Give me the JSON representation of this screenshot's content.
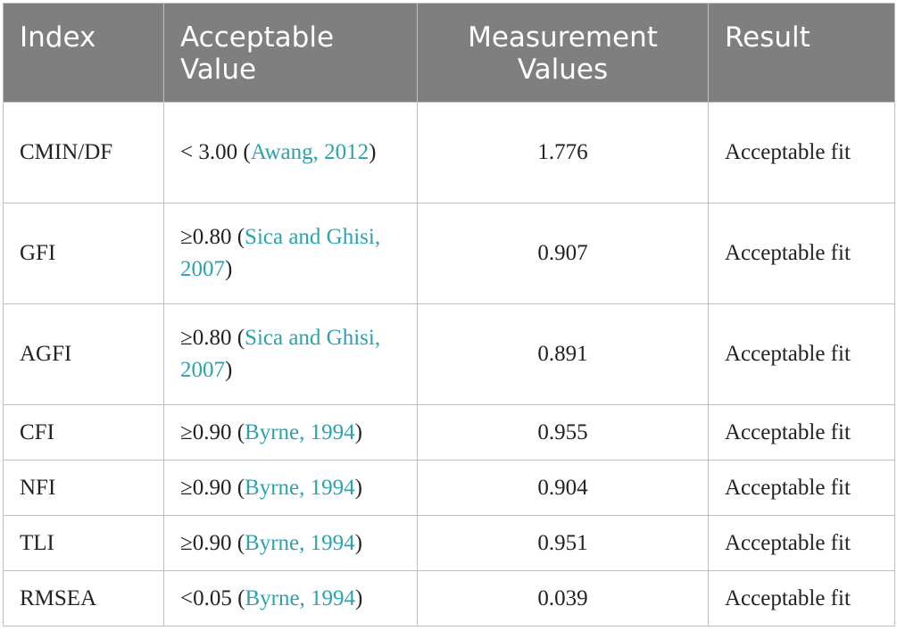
{
  "table": {
    "headers": [
      {
        "line1": "Index",
        "line2": ""
      },
      {
        "line1": "Acceptable",
        "line2": "Value"
      },
      {
        "line1": "Measurement",
        "line2": "Values"
      },
      {
        "line1": "Result",
        "line2": ""
      }
    ],
    "rows": [
      {
        "index": "CMIN/DF",
        "crit_prefix": "< 3.00 (",
        "citation": "Awang, 2012",
        "crit_suffix": ")",
        "value": "1.776",
        "result": "Acceptable fit"
      },
      {
        "index": "GFI",
        "crit_prefix": "≥0.80 (",
        "citation": "Sica and Ghisi, 2007",
        "crit_suffix": ")",
        "value": "0.907",
        "result": "Acceptable fit"
      },
      {
        "index": "AGFI",
        "crit_prefix": "≥0.80 (",
        "citation": "Sica and Ghisi, 2007",
        "crit_suffix": ")",
        "value": "0.891",
        "result": "Acceptable fit"
      },
      {
        "index": "CFI",
        "crit_prefix": "≥0.90 (",
        "citation": "Byrne, 1994",
        "crit_suffix": ")",
        "value": "0.955",
        "result": "Acceptable fit"
      },
      {
        "index": "NFI",
        "crit_prefix": "≥0.90 (",
        "citation": "Byrne, 1994",
        "crit_suffix": ")",
        "value": "0.904",
        "result": "Acceptable fit"
      },
      {
        "index": "TLI",
        "crit_prefix": "≥0.90 (",
        "citation": "Byrne, 1994",
        "crit_suffix": ")",
        "value": "0.951",
        "result": "Acceptable fit"
      },
      {
        "index": "RMSEA",
        "crit_prefix": "<0.05 (",
        "citation": "Byrne, 1994",
        "crit_suffix": ")",
        "value": "0.039",
        "result": "Acceptable fit"
      }
    ]
  },
  "colors": {
    "header_bg": "#7e7f7e",
    "citation_link": "#2aa3ae",
    "grid": "#bfbfbf"
  }
}
